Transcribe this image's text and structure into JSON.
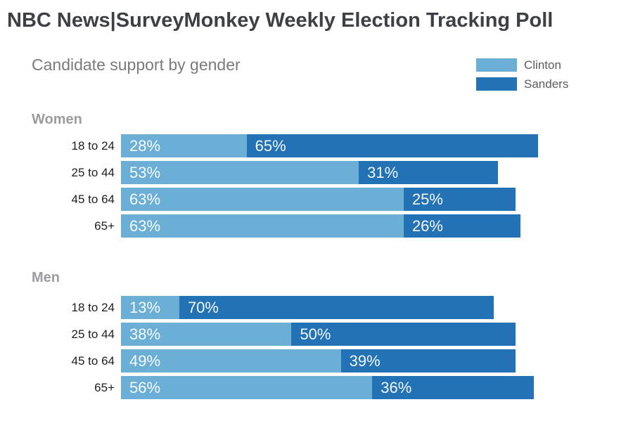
{
  "title": "NBC News|SurveyMonkey Weekly Election Tracking Poll",
  "subtitle": "Candidate support by gender",
  "legend": {
    "items": [
      {
        "label": "Clinton",
        "color": "#6baed6"
      },
      {
        "label": "Sanders",
        "color": "#2272b5"
      }
    ]
  },
  "colors": {
    "clinton": "#6baed6",
    "sanders": "#2272b5",
    "title_text": "#3d4045",
    "subtitle_text": "#797b7e",
    "group_header_text": "#9a9c9f",
    "axis_label_text": "#1d1e20",
    "bar_value_text": "#ffffff",
    "background": "#ffffff"
  },
  "chart_data": {
    "type": "bar",
    "orientation": "horizontal",
    "stacked": true,
    "unit": "%",
    "xlim": [
      0,
      100
    ],
    "grid": false,
    "legend_position": "top-right",
    "title": "Candidate support by gender",
    "series_names": [
      "Clinton",
      "Sanders"
    ],
    "series_colors": [
      "#6baed6",
      "#2272b5"
    ],
    "groups": [
      {
        "label": "Women",
        "categories": [
          "18 to 24",
          "25 to 44",
          "45 to 64",
          "65+"
        ],
        "series": [
          {
            "name": "Clinton",
            "values": [
              28,
              53,
              63,
              63
            ]
          },
          {
            "name": "Sanders",
            "values": [
              65,
              31,
              25,
              26
            ]
          }
        ]
      },
      {
        "label": "Men",
        "categories": [
          "18 to 24",
          "25 to 44",
          "45 to 64",
          "65+"
        ],
        "series": [
          {
            "name": "Clinton",
            "values": [
              13,
              38,
              49,
              56
            ]
          },
          {
            "name": "Sanders",
            "values": [
              70,
              50,
              39,
              36
            ]
          }
        ]
      }
    ]
  }
}
